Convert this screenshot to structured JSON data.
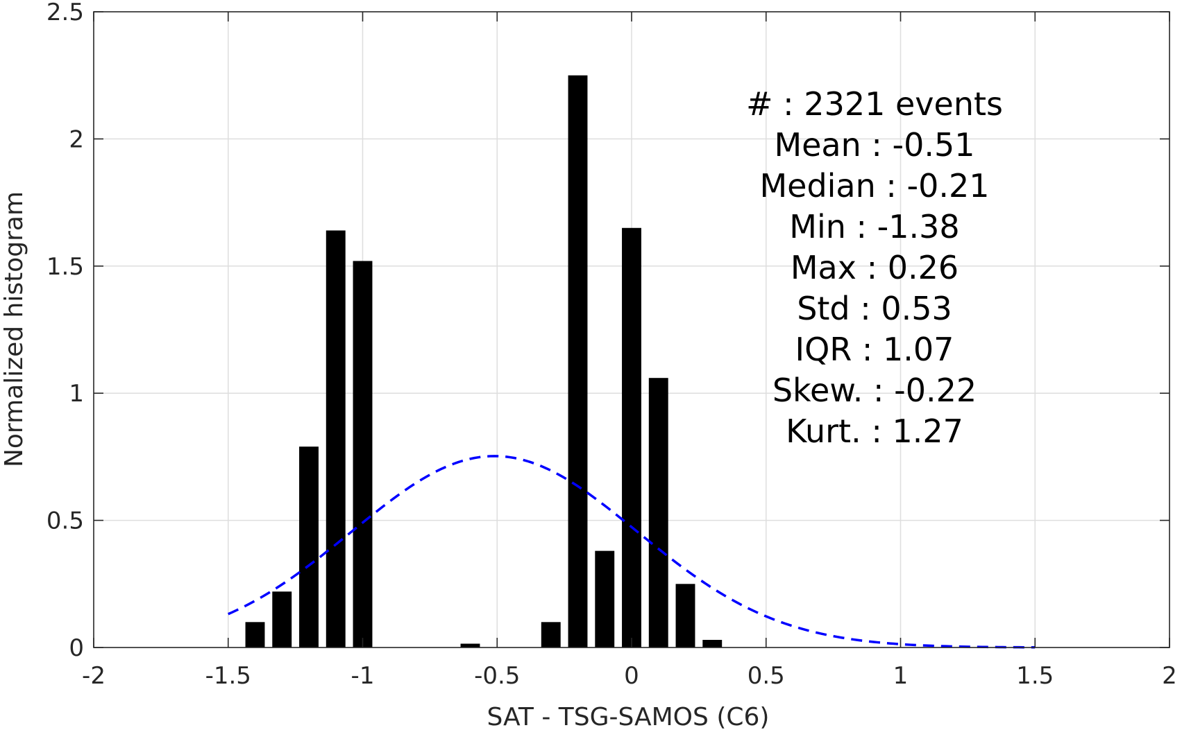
{
  "chart_data": {
    "type": "bar",
    "title": "",
    "xlabel": "SAT - TSG-SAMOS (C6)",
    "ylabel": "Normalized histogram",
    "xlim": [
      -2,
      2
    ],
    "ylim": [
      0,
      2.5
    ],
    "grid": true,
    "xticks": [
      -2,
      -1.5,
      -1,
      -0.5,
      0,
      0.5,
      1,
      1.5,
      2
    ],
    "xtick_labels": [
      "-2",
      "-1.5",
      "-1",
      "-0.5",
      "0",
      "0.5",
      "1",
      "1.5",
      "2"
    ],
    "yticks": [
      0,
      0.5,
      1,
      1.5,
      2,
      2.5
    ],
    "ytick_labels": [
      "0",
      "0.5",
      "1",
      "1.5",
      "2",
      "2.5"
    ],
    "bin_width": 0.1,
    "bar_color": "#000000",
    "bars": [
      {
        "x": -1.4,
        "value": 0.1
      },
      {
        "x": -1.3,
        "value": 0.22
      },
      {
        "x": -1.2,
        "value": 0.79
      },
      {
        "x": -1.1,
        "value": 1.64
      },
      {
        "x": -1.0,
        "value": 1.52
      },
      {
        "x": -0.6,
        "value": 0.015
      },
      {
        "x": -0.3,
        "value": 0.1
      },
      {
        "x": -0.2,
        "value": 2.25
      },
      {
        "x": -0.1,
        "value": 0.38
      },
      {
        "x": 0.0,
        "value": 1.65
      },
      {
        "x": 0.1,
        "value": 1.06
      },
      {
        "x": 0.2,
        "value": 0.25
      },
      {
        "x": 0.3,
        "value": 0.03
      }
    ],
    "fit_curve": {
      "kind": "normal",
      "mean": -0.51,
      "std": 0.53,
      "x_range": [
        -1.5,
        1.5
      ],
      "color": "#0000ff",
      "style": "dashed"
    }
  },
  "stats": [
    {
      "label": "#",
      "value": ": 2321 events"
    },
    {
      "label": "Mean",
      "value": ": -0.51"
    },
    {
      "label": "Median",
      "value": ": -0.21"
    },
    {
      "label": "Min",
      "value": ": -1.38"
    },
    {
      "label": "Max",
      "value": ": 0.26"
    },
    {
      "label": "Std",
      "value": ": 0.53"
    },
    {
      "label": "IQR",
      "value": ": 1.07"
    },
    {
      "label": "Skew.",
      "value": ": -0.22"
    },
    {
      "label": "Kurt.",
      "value": ": 1.27"
    }
  ]
}
